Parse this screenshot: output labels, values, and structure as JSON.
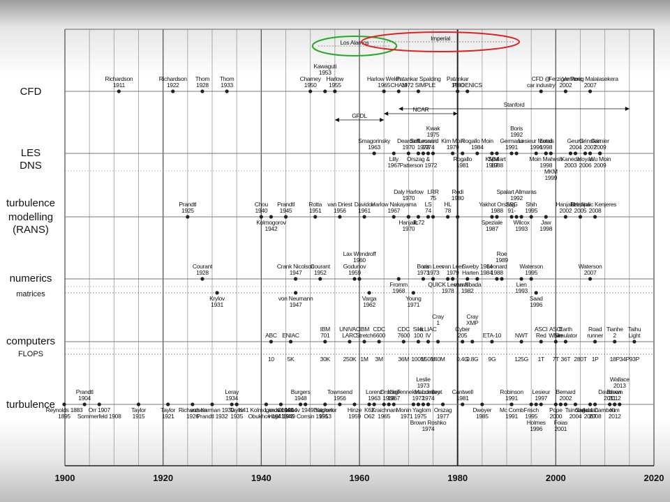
{
  "axis": {
    "start": 1900,
    "end": 2020,
    "ticks": [
      "1900",
      "1920",
      "1940",
      "1960",
      "1980",
      "2000",
      "2020"
    ]
  },
  "rows": [
    {
      "key": "cfd",
      "label": "CFD"
    },
    {
      "key": "les",
      "label": "LES DNS"
    },
    {
      "key": "rans",
      "label": "turbulence modelling (RANS)"
    },
    {
      "key": "num",
      "label": "numerics"
    },
    {
      "key": "mat",
      "label": "matrices"
    },
    {
      "key": "comp",
      "label": "computers"
    },
    {
      "key": "flops",
      "label": "FLOPS"
    },
    {
      "key": "turb",
      "label": "turbulence"
    }
  ],
  "bands": [
    {
      "label": "Los Alamos",
      "from": 1953,
      "to": 1965,
      "row": "cfd",
      "color": "#22aa22"
    },
    {
      "label": "Imperial",
      "from": 1963,
      "to": 1990,
      "row": "cfd",
      "color": "#dd2222"
    },
    {
      "label": "GFDL",
      "from": 1955,
      "to": 1965,
      "row": "les",
      "color": "#111111"
    },
    {
      "label": "NCAR",
      "from": 1965,
      "to": 1980,
      "row": "les",
      "color": "#111111"
    },
    {
      "label": "Stanford",
      "from": 1968,
      "to": 2015,
      "row": "les",
      "color": "#111111"
    }
  ],
  "events": [
    {
      "row": "cfd",
      "year": 1911,
      "text": "Richardson 1911",
      "side": "above"
    },
    {
      "row": "cfd",
      "year": 1922,
      "text": "Richardson 1922",
      "side": "above"
    },
    {
      "row": "cfd",
      "year": 1928,
      "text": "Thom 1928",
      "side": "above"
    },
    {
      "row": "cfd",
      "year": 1933,
      "text": "Thom 1933",
      "side": "above"
    },
    {
      "row": "cfd",
      "year": 1950,
      "text": "Charney 1950",
      "side": "above"
    },
    {
      "row": "cfd",
      "year": 1953,
      "text": "Kawaguti 1953",
      "side": "above"
    },
    {
      "row": "cfd",
      "year": 1955,
      "text": "Harlow 1955",
      "side": "above"
    },
    {
      "row": "cfd",
      "year": 1965,
      "text": "Harlow Welch 1965",
      "side": "above"
    },
    {
      "row": "cfd",
      "year": 1968,
      "text": "CHAM",
      "side": "above"
    },
    {
      "row": "cfd",
      "year": 1972,
      "text": "Patankar Spalding 1972 SIMPLE",
      "side": "above"
    },
    {
      "row": "cfd",
      "year": 1980,
      "text": "Patankar 1980",
      "side": "above"
    },
    {
      "row": "cfd",
      "year": 1982,
      "text": "PHOENICS",
      "side": "above"
    },
    {
      "row": "cfd",
      "year": 1997,
      "text": "CFD @ car industry",
      "side": "above"
    },
    {
      "row": "cfd",
      "year": 2002,
      "text": "Ferziger Peric 2002",
      "side": "above"
    },
    {
      "row": "cfd",
      "year": 2007,
      "text": "Versteeg Malalasekera 2007",
      "side": "above"
    },
    {
      "row": "les",
      "year": 1963,
      "text": "Smagorinsky 1963",
      "side": "above"
    },
    {
      "row": "les",
      "year": 1967,
      "text": "Lilly 1967",
      "side": "below"
    },
    {
      "row": "les",
      "year": 1970,
      "text": "Deardorff 1970",
      "side": "above"
    },
    {
      "row": "les",
      "year": 1973,
      "text": "Schumann 1973",
      "side": "above"
    },
    {
      "row": "les",
      "year": 1974,
      "text": "Leonard 1974",
      "side": "above"
    },
    {
      "row": "les",
      "year": 1975,
      "text": "Kwak 1975",
      "side": "above"
    },
    {
      "row": "les",
      "year": 1979,
      "text": "Kim Moin 1979",
      "side": "above"
    },
    {
      "row": "les",
      "year": 1984,
      "text": "Rogallo Moin 1984",
      "side": "above"
    },
    {
      "row": "les",
      "year": 1991,
      "text": "Germano 1991",
      "side": "above"
    },
    {
      "row": "les",
      "year": 1992,
      "text": "Boris 1992",
      "side": "above"
    },
    {
      "row": "les",
      "year": 1996,
      "text": "Lesieur Metais 1996",
      "side": "above"
    },
    {
      "row": "les",
      "year": 1998,
      "text": "Lund 1998",
      "side": "above"
    },
    {
      "row": "les",
      "year": 2004,
      "text": "Geurts 2004",
      "side": "above"
    },
    {
      "row": "les",
      "year": 2007,
      "text": "Grinstein 2007",
      "side": "above"
    },
    {
      "row": "les",
      "year": 2009,
      "text": "Garnier 2009",
      "side": "above"
    },
    {
      "row": "les",
      "year": 1972,
      "text": "Orszag & Patterson 1972",
      "side": "below"
    },
    {
      "row": "les",
      "year": 1981,
      "text": "Rogallo 1981",
      "side": "below"
    },
    {
      "row": "les",
      "year": 1987,
      "text": "KMM 1987",
      "side": "below"
    },
    {
      "row": "les",
      "year": 1988,
      "text": "Spalart 1988",
      "side": "below"
    },
    {
      "row": "les",
      "year": 1998,
      "text": "Moin Mahesh 1998",
      "side": "below"
    },
    {
      "row": "les",
      "year": 1999,
      "text": "MKM 1999",
      "side": "below"
    },
    {
      "row": "les",
      "year": 2003,
      "text": "Kaneda 2003",
      "side": "below"
    },
    {
      "row": "les",
      "year": 2006,
      "text": "Hoyas 2006",
      "side": "below"
    },
    {
      "row": "les",
      "year": 2009,
      "text": "Wu Moin 2009",
      "side": "below"
    },
    {
      "row": "rans",
      "year": 1925,
      "text": "Prandtl 1925",
      "side": "above"
    },
    {
      "row": "rans",
      "year": 1940,
      "text": "Chou 1940",
      "side": "above"
    },
    {
      "row": "rans",
      "year": 1942,
      "text": "Kolmogorov 1942",
      "side": "below"
    },
    {
      "row": "rans",
      "year": 1945,
      "text": "Prandtl 1945",
      "side": "above"
    },
    {
      "row": "rans",
      "year": 1951,
      "text": "Rotta 1951",
      "side": "above"
    },
    {
      "row": "rans",
      "year": 1956,
      "text": "van Driest 1956",
      "side": "above"
    },
    {
      "row": "rans",
      "year": 1961,
      "text": "Davidov 1961",
      "side": "above"
    },
    {
      "row": "rans",
      "year": 1967,
      "text": "Harlow Nakayama 1967",
      "side": "above"
    },
    {
      "row": "rans",
      "year": 1970,
      "text": "Daly Harlow 1970",
      "side": "above"
    },
    {
      "row": "rans",
      "year": 1970,
      "text": "Hanjalic 1970",
      "side": "below"
    },
    {
      "row": "rans",
      "year": 1972,
      "text": "JL72",
      "side": "below"
    },
    {
      "row": "rans",
      "year": 1974,
      "text": "LS 74",
      "side": "above"
    },
    {
      "row": "rans",
      "year": 1975,
      "text": "LRR 75",
      "side": "above"
    },
    {
      "row": "rans",
      "year": 1978,
      "text": "HL 78",
      "side": "above"
    },
    {
      "row": "rans",
      "year": 1980,
      "text": "Rodi 1980",
      "side": "above"
    },
    {
      "row": "rans",
      "year": 1988,
      "text": "Yakhot Orszag 1988",
      "side": "above"
    },
    {
      "row": "rans",
      "year": 1991,
      "text": "SSG 91-",
      "side": "above"
    },
    {
      "row": "rans",
      "year": 1992,
      "text": "Spalart Allmaras 1992",
      "side": "above"
    },
    {
      "row": "rans",
      "year": 1987,
      "text": "Speziale 1987",
      "side": "below"
    },
    {
      "row": "rans",
      "year": 1993,
      "text": "Wilcox 1993",
      "side": "below"
    },
    {
      "row": "rans",
      "year": 1995,
      "text": "Shih 1995",
      "side": "above"
    },
    {
      "row": "rans",
      "year": 1998,
      "text": "Jaw 1998",
      "side": "below"
    },
    {
      "row": "rans",
      "year": 2002,
      "text": "Hanjalic 2002",
      "side": "above"
    },
    {
      "row": "rans",
      "year": 2005,
      "text": "Bardina 2005",
      "side": "above"
    },
    {
      "row": "rans",
      "year": 2008,
      "text": "Hanjalic Kenjeres 2008",
      "side": "above"
    },
    {
      "row": "num",
      "year": 1928,
      "text": "Courant 1928",
      "side": "above"
    },
    {
      "row": "num",
      "year": 1947,
      "text": "Crank Nicolson 1947",
      "side": "above"
    },
    {
      "row": "num",
      "year": 1952,
      "text": "Courant 1952",
      "side": "above"
    },
    {
      "row": "num",
      "year": 1959,
      "text": "Godunov 1959",
      "side": "above"
    },
    {
      "row": "num",
      "year": 1960,
      "text": "Lax Wendroff 1960",
      "side": "above"
    },
    {
      "row": "num",
      "year": 1968,
      "text": "Fromm 1968",
      "side": "below"
    },
    {
      "row": "num",
      "year": 1973,
      "text": "Boris 1973",
      "side": "above"
    },
    {
      "row": "num",
      "year": 1975,
      "text": "van Leer 1973",
      "side": "above"
    },
    {
      "row": "num",
      "year": 1979,
      "text": "van Leer 1979",
      "side": "above"
    },
    {
      "row": "num",
      "year": 1978,
      "text": "QUICK Leonard 1978",
      "side": "below"
    },
    {
      "row": "num",
      "year": 1982,
      "text": "van Albada 1982",
      "side": "below"
    },
    {
      "row": "num",
      "year": 1984,
      "text": "Sweby 1984 Harten 1984",
      "side": "above"
    },
    {
      "row": "num",
      "year": 1988,
      "text": "Leonard 1988",
      "side": "above"
    },
    {
      "row": "num",
      "year": 1989,
      "text": "Roe 1989",
      "side": "above"
    },
    {
      "row": "num",
      "year": 1995,
      "text": "Waterson 1995",
      "side": "above"
    },
    {
      "row": "num",
      "year": 2007,
      "text": "Waterson 2007",
      "side": "above"
    },
    {
      "row": "num",
      "year": 1993,
      "text": "Lien 1993",
      "side": "below"
    },
    {
      "row": "mat",
      "year": 1931,
      "text": "Krylov 1931",
      "side": "below"
    },
    {
      "row": "mat",
      "year": 1947,
      "text": "von Neumann 1947",
      "side": "below"
    },
    {
      "row": "mat",
      "year": 1962,
      "text": "Varga 1962",
      "side": "below"
    },
    {
      "row": "mat",
      "year": 1971,
      "text": "Young 1971",
      "side": "below"
    },
    {
      "row": "mat",
      "year": 1996,
      "text": "Saad 1996",
      "side": "below"
    },
    {
      "row": "comp",
      "year": 1942,
      "text": "ABC",
      "side": "above"
    },
    {
      "row": "comp",
      "year": 1946,
      "text": "ENIAC",
      "side": "above"
    },
    {
      "row": "comp",
      "year": 1953,
      "text": "IBM 701",
      "side": "above"
    },
    {
      "row": "comp",
      "year": 1958,
      "text": "UNIVAC LARC",
      "side": "above"
    },
    {
      "row": "comp",
      "year": 1961,
      "text": "IBM Stretch",
      "side": "above"
    },
    {
      "row": "comp",
      "year": 1964,
      "text": "CDC 6600",
      "side": "above"
    },
    {
      "row": "comp",
      "year": 1969,
      "text": "CDC 7600",
      "side": "above"
    },
    {
      "row": "comp",
      "year": 1972,
      "text": "Siler 100",
      "side": "above"
    },
    {
      "row": "comp",
      "year": 1974,
      "text": "ILLIAC IV",
      "side": "above"
    },
    {
      "row": "comp",
      "year": 1976,
      "text": "Cray 1",
      "side": "above"
    },
    {
      "row": "comp",
      "year": 1981,
      "text": "Cyber 205",
      "side": "above"
    },
    {
      "row": "comp",
      "year": 1983,
      "text": "Cray XMP",
      "side": "above"
    },
    {
      "row": "comp",
      "year": 1987,
      "text": "ETA-10",
      "side": "above"
    },
    {
      "row": "comp",
      "year": 1993,
      "text": "NWT",
      "side": "above"
    },
    {
      "row": "comp",
      "year": 1997,
      "text": "ASCI Red",
      "side": "above"
    },
    {
      "row": "comp",
      "year": 2000,
      "text": "ASCI White",
      "side": "above"
    },
    {
      "row": "comp",
      "year": 2002,
      "text": "Earth Simulator",
      "side": "above"
    },
    {
      "row": "comp",
      "year": 2008,
      "text": "Road runner",
      "side": "above"
    },
    {
      "row": "comp",
      "year": 2012,
      "text": "Tianhe 2",
      "side": "above"
    },
    {
      "row": "comp",
      "year": 2016,
      "text": "Taihu Light",
      "side": "above"
    },
    {
      "row": "flops",
      "year": 1942,
      "text": "10",
      "side": "above"
    },
    {
      "row": "flops",
      "year": 1946,
      "text": "5K",
      "side": "above"
    },
    {
      "row": "flops",
      "year": 1953,
      "text": "30K",
      "side": "above"
    },
    {
      "row": "flops",
      "year": 1958,
      "text": "250K",
      "side": "above"
    },
    {
      "row": "flops",
      "year": 1961,
      "text": "1M",
      "side": "above"
    },
    {
      "row": "flops",
      "year": 1964,
      "text": "3M",
      "side": "above"
    },
    {
      "row": "flops",
      "year": 1969,
      "text": "36M",
      "side": "above"
    },
    {
      "row": "flops",
      "year": 1972,
      "text": "100M",
      "side": "above"
    },
    {
      "row": "flops",
      "year": 1974,
      "text": "150M",
      "side": "above"
    },
    {
      "row": "flops",
      "year": 1976,
      "text": "140M",
      "side": "above"
    },
    {
      "row": "flops",
      "year": 1981,
      "text": "0.4G",
      "side": "above"
    },
    {
      "row": "flops",
      "year": 1983,
      "text": "0.8G",
      "side": "above"
    },
    {
      "row": "flops",
      "year": 1987,
      "text": "9G",
      "side": "above"
    },
    {
      "row": "flops",
      "year": 1993,
      "text": "125G",
      "side": "above"
    },
    {
      "row": "flops",
      "year": 1997,
      "text": "1T",
      "side": "above"
    },
    {
      "row": "flops",
      "year": 2000,
      "text": "7T",
      "side": "above"
    },
    {
      "row": "flops",
      "year": 2002,
      "text": "36T",
      "side": "above"
    },
    {
      "row": "flops",
      "year": 2005,
      "text": "280T",
      "side": "above"
    },
    {
      "row": "flops",
      "year": 2008,
      "text": "1P",
      "side": "above"
    },
    {
      "row": "flops",
      "year": 2012,
      "text": "18P",
      "side": "above"
    },
    {
      "row": "flops",
      "year": 2014,
      "text": "34P",
      "side": "above"
    },
    {
      "row": "flops",
      "year": 2016,
      "text": "93P",
      "side": "above"
    },
    {
      "row": "turb",
      "year": 1883,
      "text": "Reynolds 1883 1895",
      "side": "below"
    },
    {
      "row": "turb",
      "year": 1904,
      "text": "Prandtl 1904",
      "side": "above"
    },
    {
      "row": "turb",
      "year": 1907,
      "text": "Orr 1907 Sommerfeld 1908",
      "side": "below"
    },
    {
      "row": "turb",
      "year": 1915,
      "text": "Taylor 1915",
      "side": "below"
    },
    {
      "row": "turb",
      "year": 1921,
      "text": "Taylor 1921",
      "side": "below"
    },
    {
      "row": "turb",
      "year": 1926,
      "text": "Richardson 1926",
      "side": "below"
    },
    {
      "row": "turb",
      "year": 1930,
      "text": "von Karman 1930 Prandtl 1932",
      "side": "below"
    },
    {
      "row": "turb",
      "year": 1934,
      "text": "Leray 1934",
      "side": "above"
    },
    {
      "row": "turb",
      "year": 1935,
      "text": "Taylor 1935",
      "side": "below"
    },
    {
      "row": "turb",
      "year": 1941,
      "text": "K41 Kolmogorov 1941 Obukhov 1941",
      "side": "below"
    },
    {
      "row": "turb",
      "year": 1944,
      "text": "Landau 1944 Hopf 1948",
      "side": "below"
    },
    {
      "row": "turb",
      "year": 1948,
      "text": "Burgers 1948",
      "side": "above"
    },
    {
      "row": "turb",
      "year": 1949,
      "text": "Obukhov 1949 Yaglom 1949 Corrsin 1951",
      "side": "below"
    },
    {
      "row": "turb",
      "year": 1953,
      "text": "Batchelor 1953",
      "side": "below"
    },
    {
      "row": "turb",
      "year": 1956,
      "text": "Townsend 1956",
      "side": "above"
    },
    {
      "row": "turb",
      "year": 1959,
      "text": "Hinze 1959",
      "side": "below"
    },
    {
      "row": "turb",
      "year": 1962,
      "text": "K62 O62",
      "side": "below"
    },
    {
      "row": "turb",
      "year": 1963,
      "text": "Lorenz 1963",
      "side": "above"
    },
    {
      "row": "turb",
      "year": 1965,
      "text": "Kraichnan 1965",
      "side": "below"
    },
    {
      "row": "turb",
      "year": 1967,
      "text": "Kline 1967",
      "side": "above"
    },
    {
      "row": "turb",
      "year": 1966,
      "text": "Orszag 1966",
      "side": "above"
    },
    {
      "row": "turb",
      "year": 1972,
      "text": "Tennekes Lumley 1972",
      "side": "above"
    },
    {
      "row": "turb",
      "year": 1973,
      "text": "Leslie 1973",
      "side": "above"
    },
    {
      "row": "turb",
      "year": 1974,
      "text": "Mandelbrot 1974",
      "side": "above"
    },
    {
      "row": "turb",
      "year": 1977,
      "text": "Orszag 1977",
      "side": "below"
    },
    {
      "row": "turb",
      "year": 1971,
      "text": "Monin Yaglom 1971 1975",
      "side": "below"
    },
    {
      "row": "turb",
      "year": 1974,
      "text": "Brown Roshko 1974",
      "side": "below"
    },
    {
      "row": "turb",
      "year": 1981,
      "text": "Cantwell 1981",
      "side": "above"
    },
    {
      "row": "turb",
      "year": 1985,
      "text": "Dwoyer 1985",
      "side": "below"
    },
    {
      "row": "turb",
      "year": 1991,
      "text": "Robinson 1991",
      "side": "above"
    },
    {
      "row": "turb",
      "year": 1991,
      "text": "Mc Comb 1991",
      "side": "below"
    },
    {
      "row": "turb",
      "year": 1995,
      "text": "Frisch 1995",
      "side": "below"
    },
    {
      "row": "turb",
      "year": 1996,
      "text": "Holmes 1996",
      "side": "below"
    },
    {
      "row": "turb",
      "year": 1997,
      "text": "Lesieur 1997",
      "side": "above"
    },
    {
      "row": "turb",
      "year": 2000,
      "text": "Pope 2000",
      "side": "below"
    },
    {
      "row": "turb",
      "year": 2001,
      "text": "Foias 2001",
      "side": "below"
    },
    {
      "row": "turb",
      "year": 2002,
      "text": "Bernard 2002",
      "side": "above"
    },
    {
      "row": "turb",
      "year": 2004,
      "text": "Tsinober 2004",
      "side": "below"
    },
    {
      "row": "turb",
      "year": 2007,
      "text": "Adrian 2007",
      "side": "below"
    },
    {
      "row": "turb",
      "year": 2008,
      "text": "Sagaut Cambon 2008",
      "side": "below"
    },
    {
      "row": "turb",
      "year": 2011,
      "text": "Davidson 2011",
      "side": "above"
    },
    {
      "row": "turb",
      "year": 2012,
      "text": "Brown 2012",
      "side": "above"
    },
    {
      "row": "turb",
      "year": 2012,
      "text": "Kim 2012",
      "side": "below"
    },
    {
      "row": "turb",
      "year": 2013,
      "text": "Wallace 2013",
      "side": "above"
    }
  ]
}
